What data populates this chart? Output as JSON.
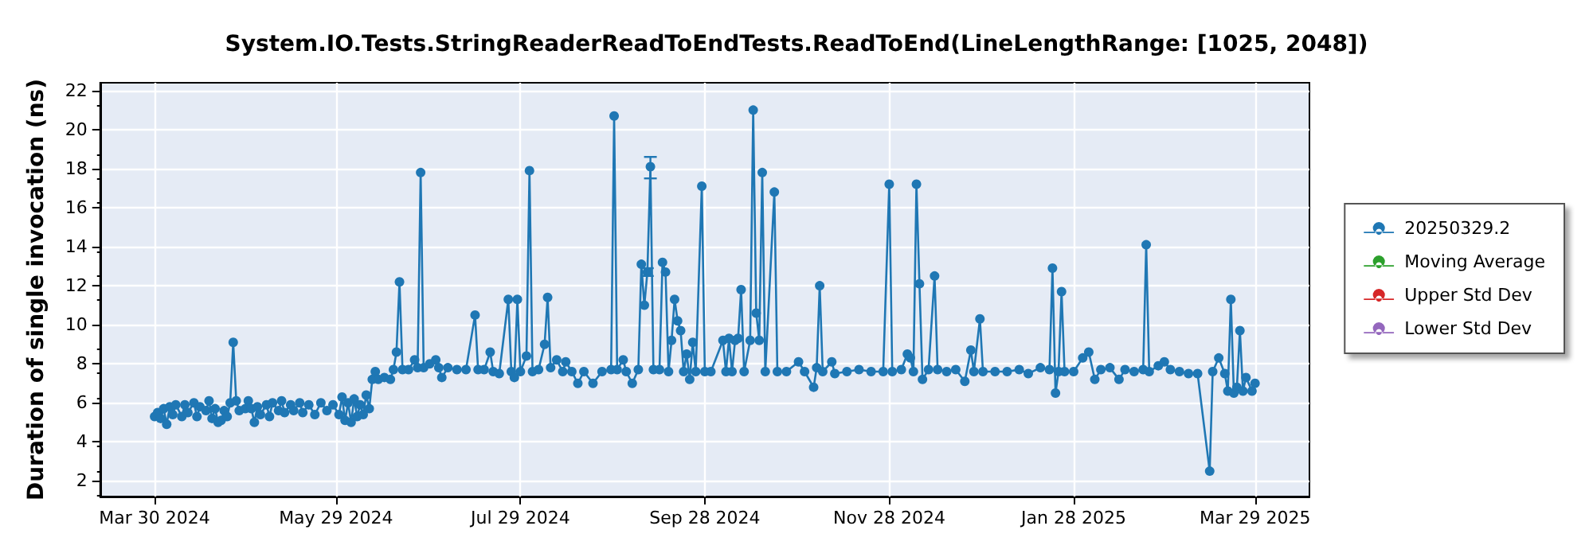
{
  "chart_data": {
    "type": "line",
    "title": "System.IO.Tests.StringReaderReadToEndTests.ReadToEnd(LineLengthRange: [1025, 2048])",
    "ylabel": "Duration of single invocation (ns)",
    "xlim": [
      "2024-03-12",
      "2025-04-16"
    ],
    "xticks": [
      {
        "value": "2024-03-30",
        "label": "Mar 30 2024"
      },
      {
        "value": "2024-05-29",
        "label": "May 29 2024"
      },
      {
        "value": "2024-07-29",
        "label": "Jul 29 2024"
      },
      {
        "value": "2024-09-28",
        "label": "Sep 28 2024"
      },
      {
        "value": "2024-11-28",
        "label": "Nov 28 2024"
      },
      {
        "value": "2025-01-28",
        "label": "Jan 28 2025"
      },
      {
        "value": "2025-03-29",
        "label": "Mar 29 2025"
      }
    ],
    "ylim": [
      1.2,
      22.4
    ],
    "yticks": [
      2,
      4,
      6,
      8,
      10,
      12,
      14,
      16,
      18,
      20,
      22
    ],
    "grid": true,
    "legend": "right",
    "marker": "circle",
    "line_style": "solid",
    "series": [
      {
        "name": "20250329.2",
        "color": "#1f77b4",
        "x": [
          "2024-03-30",
          "2024-03-31",
          "2024-04-01",
          "2024-04-02",
          "2024-04-03",
          "2024-04-04",
          "2024-04-05",
          "2024-04-06",
          "2024-04-08",
          "2024-04-09",
          "2024-04-10",
          "2024-04-12",
          "2024-04-13",
          "2024-04-14",
          "2024-04-16",
          "2024-04-17",
          "2024-04-18",
          "2024-04-19",
          "2024-04-20",
          "2024-04-21",
          "2024-04-22",
          "2024-04-23",
          "2024-04-24",
          "2024-04-25",
          "2024-04-26",
          "2024-04-27",
          "2024-04-29",
          "2024-04-30",
          "2024-05-01",
          "2024-05-02",
          "2024-05-03",
          "2024-05-04",
          "2024-05-06",
          "2024-05-07",
          "2024-05-08",
          "2024-05-10",
          "2024-05-11",
          "2024-05-12",
          "2024-05-14",
          "2024-05-15",
          "2024-05-17",
          "2024-05-18",
          "2024-05-20",
          "2024-05-22",
          "2024-05-24",
          "2024-05-26",
          "2024-05-28",
          "2024-05-30",
          "2024-05-31",
          "2024-06-01",
          "2024-06-02",
          "2024-06-03",
          "2024-06-04",
          "2024-06-05",
          "2024-06-06",
          "2024-06-07",
          "2024-06-08",
          "2024-06-09",
          "2024-06-10",
          "2024-06-11",
          "2024-06-12",
          "2024-06-14",
          "2024-06-16",
          "2024-06-17",
          "2024-06-18",
          "2024-06-19",
          "2024-06-20",
          "2024-06-22",
          "2024-06-24",
          "2024-06-25",
          "2024-06-26",
          "2024-06-27",
          "2024-06-29",
          "2024-07-01",
          "2024-07-02",
          "2024-07-03",
          "2024-07-05",
          "2024-07-08",
          "2024-07-11",
          "2024-07-14",
          "2024-07-15",
          "2024-07-17",
          "2024-07-19",
          "2024-07-20",
          "2024-07-22",
          "2024-07-25",
          "2024-07-26",
          "2024-07-27",
          "2024-07-28",
          "2024-07-29",
          "2024-07-31",
          "2024-08-01",
          "2024-08-02",
          "2024-08-04",
          "2024-08-06",
          "2024-08-07",
          "2024-08-08",
          "2024-08-10",
          "2024-08-12",
          "2024-08-13",
          "2024-08-15",
          "2024-08-17",
          "2024-08-19",
          "2024-08-22",
          "2024-08-25",
          "2024-08-28",
          "2024-08-29",
          "2024-08-30",
          "2024-09-01",
          "2024-09-02",
          "2024-09-04",
          "2024-09-06",
          "2024-09-07",
          "2024-09-08",
          "2024-09-09",
          "2024-09-10",
          "2024-09-11",
          "2024-09-13",
          "2024-09-14",
          "2024-09-15",
          "2024-09-16",
          "2024-09-17",
          "2024-09-18",
          "2024-09-19",
          "2024-09-20",
          "2024-09-21",
          "2024-09-22",
          "2024-09-23",
          "2024-09-24",
          "2024-09-25",
          "2024-09-27",
          "2024-09-28",
          "2024-09-30",
          "2024-10-04",
          "2024-10-05",
          "2024-10-06",
          "2024-10-07",
          "2024-10-08",
          "2024-10-09",
          "2024-10-10",
          "2024-10-11",
          "2024-10-13",
          "2024-10-14",
          "2024-10-15",
          "2024-10-16",
          "2024-10-17",
          "2024-10-18",
          "2024-10-21",
          "2024-10-22",
          "2024-10-25",
          "2024-10-29",
          "2024-10-31",
          "2024-11-03",
          "2024-11-04",
          "2024-11-05",
          "2024-11-06",
          "2024-11-09",
          "2024-11-10",
          "2024-11-14",
          "2024-11-18",
          "2024-11-22",
          "2024-11-26",
          "2024-11-28",
          "2024-11-29",
          "2024-12-02",
          "2024-12-04",
          "2024-12-05",
          "2024-12-06",
          "2024-12-07",
          "2024-12-08",
          "2024-12-09",
          "2024-12-11",
          "2024-12-13",
          "2024-12-14",
          "2024-12-17",
          "2024-12-20",
          "2024-12-23",
          "2024-12-25",
          "2024-12-26",
          "2024-12-28",
          "2024-12-29",
          "2025-01-02",
          "2025-01-06",
          "2025-01-10",
          "2025-01-13",
          "2025-01-17",
          "2025-01-20",
          "2025-01-21",
          "2025-01-22",
          "2025-01-23",
          "2025-01-24",
          "2025-01-25",
          "2025-01-28",
          "2025-01-31",
          "2025-02-02",
          "2025-02-04",
          "2025-02-06",
          "2025-02-09",
          "2025-02-12",
          "2025-02-14",
          "2025-02-17",
          "2025-02-20",
          "2025-02-21",
          "2025-02-22",
          "2025-02-25",
          "2025-02-27",
          "2025-03-01",
          "2025-03-04",
          "2025-03-07",
          "2025-03-10",
          "2025-03-14",
          "2025-03-15",
          "2025-03-17",
          "2025-03-19",
          "2025-03-20",
          "2025-03-21",
          "2025-03-22",
          "2025-03-23",
          "2025-03-24",
          "2025-03-25",
          "2025-03-26",
          "2025-03-28",
          "2025-03-29"
        ],
        "values": [
          5.3,
          5.5,
          5.2,
          5.7,
          4.9,
          5.8,
          5.4,
          5.9,
          5.3,
          5.9,
          5.5,
          6.0,
          5.3,
          5.8,
          5.6,
          6.1,
          5.2,
          5.7,
          5.0,
          5.1,
          5.6,
          5.3,
          6.0,
          9.1,
          6.1,
          5.6,
          5.7,
          6.1,
          5.7,
          5.0,
          5.8,
          5.4,
          5.9,
          5.3,
          6.0,
          5.6,
          6.1,
          5.5,
          5.9,
          5.6,
          6.0,
          5.5,
          5.9,
          5.4,
          6.0,
          5.6,
          5.9,
          5.4,
          6.3,
          5.1,
          6.0,
          5.0,
          6.2,
          5.3,
          5.9,
          5.4,
          6.4,
          5.7,
          7.2,
          7.6,
          7.2,
          7.3,
          7.2,
          7.7,
          8.6,
          12.2,
          7.7,
          7.7,
          8.2,
          7.8,
          17.8,
          7.8,
          8.0,
          8.2,
          7.8,
          7.3,
          7.8,
          7.7,
          7.7,
          10.5,
          7.7,
          7.7,
          8.6,
          7.6,
          7.5,
          11.3,
          7.6,
          7.3,
          11.3,
          7.6,
          8.4,
          17.9,
          7.6,
          7.7,
          9.0,
          11.4,
          7.8,
          8.2,
          7.6,
          8.1,
          7.6,
          7.0,
          7.6,
          7.0,
          7.6,
          7.7,
          20.7,
          7.7,
          8.2,
          7.6,
          7.0,
          7.7,
          13.1,
          11.0,
          12.7,
          18.1,
          7.7,
          7.7,
          13.2,
          12.7,
          7.6,
          9.2,
          11.3,
          10.2,
          9.7,
          7.6,
          8.5,
          7.2,
          9.1,
          7.6,
          17.1,
          7.6,
          7.6,
          9.2,
          7.6,
          9.3,
          7.6,
          9.2,
          9.3,
          11.8,
          7.6,
          9.2,
          21.0,
          10.6,
          9.2,
          17.8,
          7.6,
          16.8,
          7.6,
          7.6,
          8.1,
          7.6,
          6.8,
          7.8,
          12.0,
          7.6,
          8.1,
          7.5,
          7.6,
          7.7,
          7.6,
          7.6,
          17.2,
          7.6,
          7.7,
          8.5,
          8.3,
          7.6,
          17.2,
          12.1,
          7.2,
          7.7,
          12.5,
          7.7,
          7.6,
          7.7,
          7.1,
          8.7,
          7.6,
          10.3,
          7.6,
          7.6,
          7.6,
          7.7,
          7.5,
          7.8,
          7.7,
          12.9,
          6.5,
          7.6,
          11.7,
          7.6,
          7.6,
          8.3,
          8.6,
          7.2,
          7.7,
          7.8,
          7.2,
          7.7,
          7.6,
          7.7,
          14.1,
          7.6,
          7.9,
          8.1,
          7.7,
          7.6,
          7.5,
          7.5,
          2.5,
          7.6,
          8.3,
          7.5,
          6.6,
          11.3,
          6.5,
          6.8,
          9.7,
          6.6,
          7.3,
          6.6,
          7.0
        ],
        "errors": [
          null,
          null,
          null,
          null,
          null,
          null,
          null,
          null,
          null,
          null,
          null,
          null,
          null,
          null,
          null,
          null,
          null,
          null,
          null,
          null,
          null,
          null,
          null,
          null,
          null,
          null,
          null,
          null,
          null,
          null,
          null,
          null,
          null,
          null,
          null,
          null,
          null,
          null,
          null,
          null,
          null,
          null,
          null,
          null,
          null,
          null,
          null,
          null,
          null,
          null,
          null,
          null,
          null,
          null,
          null,
          null,
          null,
          null,
          null,
          null,
          null,
          null,
          null,
          null,
          null,
          null,
          null,
          null,
          null,
          null,
          null,
          null,
          null,
          null,
          null,
          null,
          null,
          null,
          null,
          null,
          null,
          null,
          null,
          null,
          null,
          null,
          null,
          null,
          null,
          null,
          null,
          null,
          null,
          null,
          null,
          null,
          null,
          null,
          null,
          null,
          null,
          null,
          null,
          null,
          null,
          null,
          null,
          null,
          null,
          null,
          null,
          null,
          null,
          null,
          [
            12.5,
            12.9
          ],
          [
            17.5,
            18.6
          ],
          null,
          null,
          null,
          null,
          null,
          null,
          null,
          null,
          null,
          null,
          null,
          null,
          null,
          null,
          null,
          null,
          null,
          null,
          null,
          null,
          null,
          null,
          null,
          null,
          null,
          null,
          null,
          null,
          null,
          null,
          null,
          null,
          null,
          null,
          null,
          null,
          null,
          null,
          null,
          null,
          null,
          null,
          null,
          null,
          null,
          null,
          null,
          null,
          null,
          null,
          null,
          null,
          null,
          null,
          null,
          null,
          null,
          null,
          null,
          null,
          null,
          null,
          null,
          null,
          null,
          null,
          null,
          null,
          null,
          null,
          null,
          null,
          null,
          null,
          null,
          null,
          null,
          null,
          null,
          null,
          null,
          null,
          null,
          null,
          null,
          null,
          null,
          null,
          null,
          null,
          null,
          null,
          null,
          null,
          null,
          null,
          null,
          null,
          null,
          null,
          null,
          null,
          null,
          null,
          null,
          null,
          null
        ]
      },
      {
        "name": "Moving Average",
        "color": "#2ca02c"
      },
      {
        "name": "Upper Std Dev",
        "color": "#d62728"
      },
      {
        "name": "Lower Std Dev",
        "color": "#9467bd"
      }
    ]
  }
}
